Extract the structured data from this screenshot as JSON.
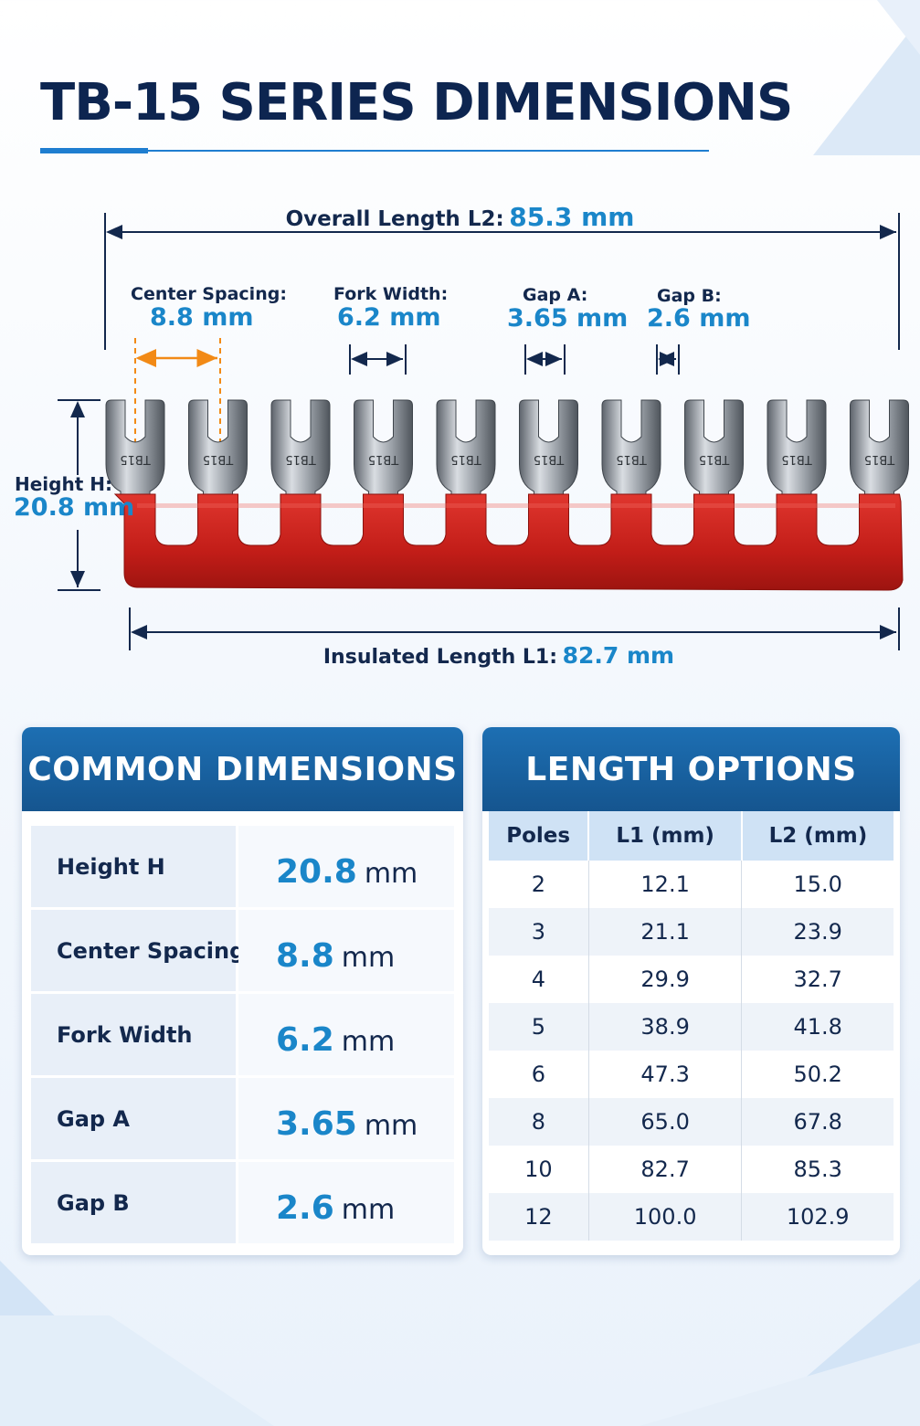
{
  "title": "TB-15 SERIES DIMENSIONS",
  "diagram": {
    "overall": {
      "label": "Overall Length L2:",
      "value": "85.3 mm"
    },
    "spacing": {
      "label": "Center Spacing:",
      "value": "8.8 mm"
    },
    "fork": {
      "label": "Fork Width:",
      "value": "6.2 mm"
    },
    "gapA": {
      "label": "Gap A:",
      "value": "3.65 mm"
    },
    "gapB": {
      "label": "Gap B:",
      "value": "2.6 mm"
    },
    "height": {
      "label": "Height H:",
      "value": "20.8 mm"
    },
    "insulated": {
      "label": "Insulated Length L1:",
      "value": "82.7 mm"
    },
    "terminal_marking": "TB15",
    "terminal_count": 10,
    "colors": {
      "insulator": "#c8201b",
      "metal": "#8a8f96",
      "accent": "#1a86c9",
      "spacing_marker": "#f28a16",
      "navy": "#13284d"
    }
  },
  "common": {
    "title": "COMMON DIMENSIONS",
    "rows": [
      {
        "name": "Height H",
        "value": "20.8",
        "unit": "mm"
      },
      {
        "name": "Center Spacing",
        "value": "8.8",
        "unit": "mm"
      },
      {
        "name": "Fork Width",
        "value": "6.2",
        "unit": "mm"
      },
      {
        "name": "Gap A",
        "value": "3.65",
        "unit": "mm"
      },
      {
        "name": "Gap B",
        "value": "2.6",
        "unit": "mm"
      }
    ]
  },
  "lengths": {
    "title": "LENGTH OPTIONS",
    "headers": [
      "Poles",
      "L1 (mm)",
      "L2 (mm)"
    ],
    "rows": [
      [
        "2",
        "12.1",
        "15.0"
      ],
      [
        "3",
        "21.1",
        "23.9"
      ],
      [
        "4",
        "29.9",
        "32.7"
      ],
      [
        "5",
        "38.9",
        "41.8"
      ],
      [
        "6",
        "47.3",
        "50.2"
      ],
      [
        "8",
        "65.0",
        "67.8"
      ],
      [
        "10",
        "82.7",
        "85.3"
      ],
      [
        "12",
        "100.0",
        "102.9"
      ]
    ]
  }
}
